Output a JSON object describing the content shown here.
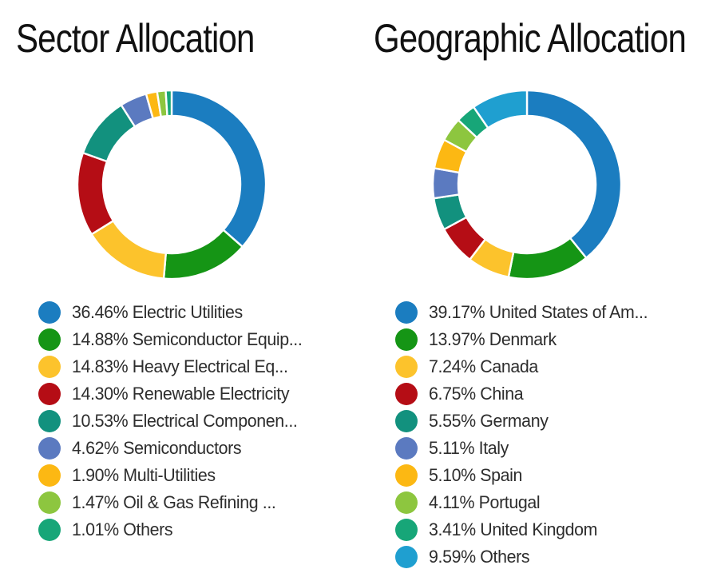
{
  "page": {
    "background_color": "#ffffff",
    "text_color": "#2d2d2d",
    "title_color": "#111111"
  },
  "chart_data": [
    {
      "type": "pie",
      "subtype": "donut",
      "title": "Sector Allocation",
      "legend_position": "bottom-left",
      "legend_format": "{value}% {label}",
      "labels": [
        "Electric Utilities",
        "Semiconductor Equip...",
        "Heavy Electrical Eq...",
        "Renewable Electricity",
        "Electrical Componen...",
        "Semiconductors",
        "Multi-Utilities",
        "Oil & Gas Refining ...",
        "Others"
      ],
      "values": [
        36.46,
        14.88,
        14.83,
        14.3,
        10.53,
        4.62,
        1.9,
        1.47,
        1.01
      ],
      "colors": [
        "#1b7dc0",
        "#159515",
        "#fcc32c",
        "#b50d15",
        "#12917e",
        "#5b7ac0",
        "#fcb813",
        "#8dc63f",
        "#17a678"
      ]
    },
    {
      "type": "pie",
      "subtype": "donut",
      "title": "Geographic Allocation",
      "legend_position": "bottom-left",
      "legend_format": "{value}% {label}",
      "labels": [
        "United States of Am...",
        "Denmark",
        "Canada",
        "China",
        "Germany",
        "Italy",
        "Spain",
        "Portugal",
        "United Kingdom",
        "Others"
      ],
      "values": [
        39.17,
        13.97,
        7.24,
        6.75,
        5.55,
        5.11,
        5.1,
        4.11,
        3.41,
        9.59
      ],
      "colors": [
        "#1b7dc0",
        "#159515",
        "#fcc32c",
        "#b50d15",
        "#12917e",
        "#5b7ac0",
        "#fcb813",
        "#8dc63f",
        "#17a678",
        "#1f9fd0"
      ]
    }
  ]
}
